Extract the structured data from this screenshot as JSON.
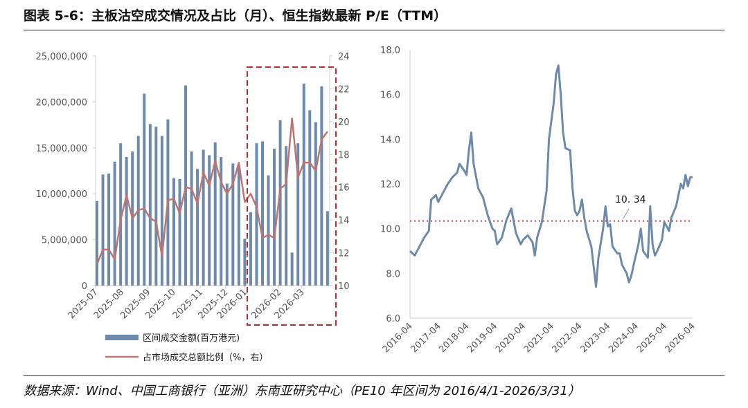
{
  "title": "图表 5-6：主板沽空成交情况及占比（月）、恒生指数最新 P/E（TTM）",
  "source": "数据来源：Wind、中国工商银行（亚洲）东南亚研究中心（PE10 年区间为 2016/4/1-2026/3/31）",
  "colors": {
    "bar": "#6d8aaa",
    "ratio_line": "#c07470",
    "pe_line": "#6d8aaa",
    "highlight_box": "#c0282d",
    "avg_line": "#c0393f"
  },
  "chart_data": [
    {
      "type": "bar+line",
      "x_tick_labels": [
        "2025-07",
        "2025-08",
        "2025-09",
        "2025-10",
        "2025-11",
        "2025-12",
        "2026-01",
        "2026-02",
        "2026-03"
      ],
      "y_left": {
        "ylim": [
          0,
          25000000
        ],
        "ticks": [
          "0",
          "5,000,000",
          "10,000,000",
          "15,000,000",
          "20,000,000",
          "25,000,000"
        ],
        "tick_values": [
          0,
          5000000,
          10000000,
          15000000,
          20000000,
          25000000
        ]
      },
      "y_right": {
        "ylim": [
          10,
          24
        ],
        "ticks": [
          "10",
          "12",
          "14",
          "16",
          "18",
          "20",
          "22",
          "24"
        ],
        "tick_values": [
          10,
          12,
          14,
          16,
          18,
          20,
          22,
          24
        ]
      },
      "series": [
        {
          "name": "区间成交金额(百万港元)",
          "type": "bar",
          "axis": "left",
          "values": [
            9200000,
            12100000,
            12200000,
            13500000,
            15500000,
            14000000,
            14600000,
            16300000,
            20900000,
            17600000,
            17300000,
            16300000,
            18100000,
            11700000,
            11600000,
            21800000,
            14600000,
            12700000,
            14800000,
            14200000,
            15600000,
            14000000,
            11100000,
            13300000,
            13000000,
            5100000,
            8000000,
            15500000,
            15700000,
            12000000,
            14900000,
            18000000,
            15200000,
            3600000,
            15500000,
            22000000,
            19100000,
            17800000,
            21700000,
            8100000
          ]
        },
        {
          "name": "占市场成交总额比例（%，右）",
          "type": "line",
          "axis": "right",
          "values": [
            11.3,
            12.2,
            12.2,
            11.6,
            14.0,
            15.5,
            14.1,
            14.6,
            14.7,
            14.1,
            13.9,
            11.8,
            15.2,
            15.3,
            14.4,
            16.0,
            15.9,
            15.0,
            16.9,
            16.1,
            17.6,
            16.3,
            15.6,
            16.2,
            17.5,
            15.1,
            15.6,
            14.8,
            12.9,
            13.1,
            12.9,
            15.9,
            16.2,
            20.2,
            16.6,
            17.5,
            17.5,
            17.0,
            18.9,
            19.4
          ]
        }
      ],
      "highlight": "2026-01 ~ 2026-03",
      "legend_placement": "bottom"
    },
    {
      "type": "line",
      "x_tick_labels": [
        "2016-04",
        "2017-04",
        "2018-04",
        "2019-04",
        "2020-04",
        "2021-04",
        "2022-04",
        "2023-04",
        "2024-04",
        "2025-04",
        "2026-04"
      ],
      "ylim": [
        6,
        18
      ],
      "y_ticks": [
        "6.0",
        "8.0",
        "10.0",
        "12.0",
        "14.0",
        "16.0",
        "18.0"
      ],
      "y_tick_values": [
        6,
        8,
        10,
        12,
        14,
        16,
        18
      ],
      "reference_line": {
        "value": 10.34,
        "label": "10. 34"
      },
      "x": [
        "2016-04",
        "2016-06",
        "2016-08",
        "2016-10",
        "2016-12",
        "2017-01",
        "2017-03",
        "2017-04",
        "2017-06",
        "2017-08",
        "2017-10",
        "2017-12",
        "2018-01",
        "2018-03",
        "2018-04",
        "2018-05",
        "2018-06",
        "2018-07",
        "2018-09",
        "2018-11",
        "2019-01",
        "2019-03",
        "2019-04",
        "2019-05",
        "2019-07",
        "2019-09",
        "2019-11",
        "2020-01",
        "2020-03",
        "2020-04",
        "2020-06",
        "2020-08",
        "2020-09",
        "2020-10",
        "2020-12",
        "2021-02",
        "2021-03",
        "2021-04",
        "2021-05",
        "2021-06",
        "2021-07",
        "2021-08",
        "2021-09",
        "2021-10",
        "2021-12",
        "2022-01",
        "2022-02",
        "2022-03",
        "2022-04",
        "2022-05",
        "2022-06",
        "2022-07",
        "2022-09",
        "2022-10",
        "2022-11",
        "2022-12",
        "2023-02",
        "2023-03",
        "2023-04",
        "2023-05",
        "2023-06",
        "2023-08",
        "2023-09",
        "2023-10",
        "2023-12",
        "2024-01",
        "2024-02",
        "2024-03",
        "2024-05",
        "2024-06",
        "2024-07",
        "2024-09",
        "2024-10",
        "2024-11",
        "2024-12",
        "2025-01",
        "2025-03",
        "2025-04",
        "2025-05",
        "2025-06",
        "2025-07",
        "2025-09",
        "2025-10",
        "2025-11",
        "2025-12",
        "2026-01",
        "2026-02",
        "2026-03",
        "2026-04"
      ],
      "y": [
        9.0,
        8.8,
        9.2,
        9.6,
        9.9,
        11.3,
        11.5,
        11.2,
        11.6,
        12.0,
        12.3,
        12.5,
        12.9,
        12.6,
        12.4,
        13.5,
        14.3,
        12.9,
        11.8,
        11.4,
        10.6,
        10.0,
        9.9,
        9.3,
        9.6,
        10.4,
        10.9,
        9.8,
        9.3,
        9.5,
        9.7,
        9.4,
        8.8,
        9.6,
        10.3,
        11.7,
        14.0,
        14.8,
        15.6,
        16.9,
        17.3,
        16.0,
        14.3,
        13.6,
        13.5,
        11.8,
        10.8,
        10.6,
        10.8,
        11.3,
        10.5,
        9.9,
        9.2,
        8.3,
        7.4,
        8.7,
        10.0,
        11.0,
        10.1,
        10.2,
        9.2,
        8.9,
        8.9,
        8.4,
        8.0,
        7.6,
        7.9,
        8.4,
        9.3,
        10.0,
        9.0,
        8.7,
        11.0,
        9.3,
        8.8,
        9.0,
        9.5,
        10.3,
        10.1,
        9.9,
        10.5,
        11.0,
        11.5,
        12.0,
        11.8,
        12.4,
        11.9,
        12.3,
        12.3
      ]
    }
  ]
}
